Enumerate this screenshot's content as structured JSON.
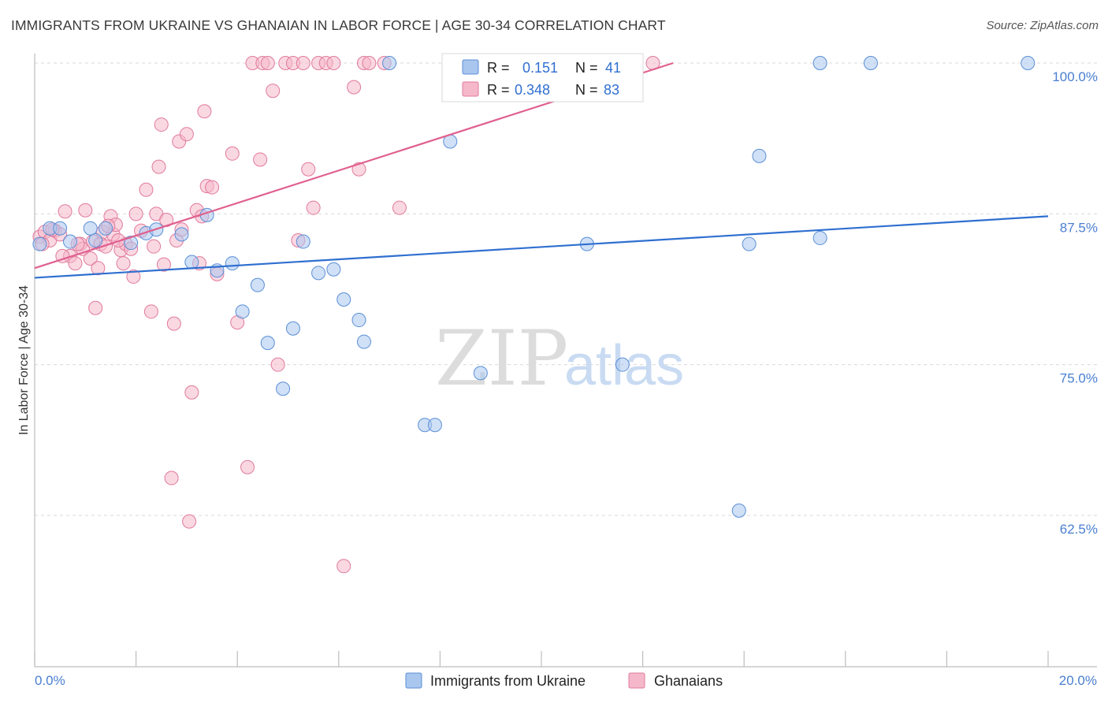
{
  "header": {
    "title": "IMMIGRANTS FROM UKRAINE VS GHANAIAN IN LABOR FORCE | AGE 30-34 CORRELATION CHART",
    "source": "Source: ZipAtlas.com"
  },
  "watermark": {
    "zip": "ZIP",
    "atlas": "atlas"
  },
  "legend": {
    "rows": [
      {
        "r_label": "R =",
        "r_value": "0.151",
        "n_label": "N =",
        "n_value": "41",
        "color": "#a9c6ef"
      },
      {
        "r_label": "R =",
        "r_value": "0.348",
        "n_label": "N =",
        "n_value": "83",
        "color": "#f5b8cb"
      }
    ]
  },
  "colors": {
    "ukraine_fill": "#a9c6ef",
    "ukraine_stroke": "#5b8fd6",
    "ukraine_line": "#2f6fd0",
    "ghana_fill": "#f5b8cb",
    "ghana_stroke": "#e07a9c",
    "ghana_line": "#e0608f",
    "axis_text": "#4a7fd1",
    "grid": "#d9d9d9"
  },
  "chart_data": {
    "type": "scatter",
    "title": "IMMIGRANTS FROM UKRAINE VS GHANAIAN IN LABOR FORCE | AGE 30-34 CORRELATION CHART",
    "xlabel": "",
    "ylabel": "In Labor Force | Age 30-34",
    "xlim": [
      0,
      20
    ],
    "ylim": [
      52.5,
      101.5
    ],
    "x_tick_labels": [
      "0.0%",
      "20.0%"
    ],
    "y_ticks": [
      100.0,
      87.5,
      75.0,
      62.5
    ],
    "y_tick_labels": [
      "100.0%",
      "87.5%",
      "75.0%",
      "62.5%"
    ],
    "grid": true,
    "legend_position": "top-center",
    "series": [
      {
        "name": "Immigrants from Ukraine",
        "points": [
          [
            0.1,
            85.0
          ],
          [
            0.3,
            86.3
          ],
          [
            0.5,
            86.3
          ],
          [
            0.7,
            85.2
          ],
          [
            1.1,
            86.3
          ],
          [
            1.2,
            85.3
          ],
          [
            1.4,
            86.3
          ],
          [
            1.9,
            85.1
          ],
          [
            2.2,
            85.9
          ],
          [
            2.4,
            86.2
          ],
          [
            2.9,
            85.8
          ],
          [
            3.1,
            83.5
          ],
          [
            3.4,
            87.4
          ],
          [
            3.6,
            82.8
          ],
          [
            3.9,
            83.4
          ],
          [
            4.1,
            79.4
          ],
          [
            4.4,
            81.6
          ],
          [
            4.6,
            76.8
          ],
          [
            4.9,
            73.0
          ],
          [
            5.1,
            78.0
          ],
          [
            5.3,
            85.2
          ],
          [
            5.6,
            82.6
          ],
          [
            5.9,
            82.9
          ],
          [
            6.1,
            80.4
          ],
          [
            6.4,
            78.7
          ],
          [
            6.5,
            76.9
          ],
          [
            7.0,
            100.0
          ],
          [
            7.7,
            70.0
          ],
          [
            7.9,
            70.0
          ],
          [
            8.2,
            93.5
          ],
          [
            8.8,
            74.3
          ],
          [
            9.3,
            100.0
          ],
          [
            10.9,
            85.0
          ],
          [
            11.6,
            75.0
          ],
          [
            13.9,
            62.9
          ],
          [
            14.1,
            85.0
          ],
          [
            14.3,
            92.3
          ],
          [
            15.5,
            100.0
          ],
          [
            15.5,
            85.5
          ],
          [
            16.5,
            100.0
          ],
          [
            19.6,
            100.0
          ]
        ],
        "trend": {
          "x": [
            0.0,
            20.0
          ],
          "y": [
            82.2,
            87.3
          ]
        }
      },
      {
        "name": "Ghanaians",
        "points": [
          [
            0.1,
            85.6
          ],
          [
            0.2,
            86.0
          ],
          [
            0.3,
            85.3
          ],
          [
            0.4,
            86.1
          ],
          [
            0.5,
            85.8
          ],
          [
            0.6,
            87.7
          ],
          [
            0.7,
            84.0
          ],
          [
            0.8,
            83.4
          ],
          [
            0.9,
            85.0
          ],
          [
            0.95,
            84.6
          ],
          [
            1.0,
            87.8
          ],
          [
            1.1,
            83.8
          ],
          [
            1.15,
            85.2
          ],
          [
            1.2,
            79.7
          ],
          [
            1.25,
            83.0
          ],
          [
            1.3,
            85.0
          ],
          [
            1.35,
            86.0
          ],
          [
            1.4,
            84.8
          ],
          [
            1.5,
            87.3
          ],
          [
            1.55,
            85.8
          ],
          [
            1.6,
            86.6
          ],
          [
            1.7,
            84.5
          ],
          [
            1.75,
            83.4
          ],
          [
            1.8,
            85.0
          ],
          [
            1.9,
            84.6
          ],
          [
            1.95,
            82.3
          ],
          [
            2.0,
            87.5
          ],
          [
            2.1,
            86.1
          ],
          [
            2.2,
            89.5
          ],
          [
            2.3,
            79.4
          ],
          [
            2.35,
            84.8
          ],
          [
            2.4,
            87.5
          ],
          [
            2.45,
            91.4
          ],
          [
            2.5,
            94.9
          ],
          [
            2.55,
            83.3
          ],
          [
            2.6,
            87.0
          ],
          [
            2.7,
            65.6
          ],
          [
            2.75,
            78.4
          ],
          [
            2.8,
            85.3
          ],
          [
            2.85,
            93.5
          ],
          [
            2.9,
            86.2
          ],
          [
            3.0,
            94.1
          ],
          [
            3.05,
            62.0
          ],
          [
            3.1,
            72.7
          ],
          [
            3.2,
            87.8
          ],
          [
            3.25,
            83.4
          ],
          [
            3.3,
            87.3
          ],
          [
            3.35,
            96.0
          ],
          [
            3.4,
            89.8
          ],
          [
            3.5,
            89.7
          ],
          [
            3.6,
            82.5
          ],
          [
            3.9,
            92.5
          ],
          [
            4.0,
            78.5
          ],
          [
            4.2,
            66.5
          ],
          [
            4.3,
            100.0
          ],
          [
            4.45,
            92.0
          ],
          [
            4.5,
            100.0
          ],
          [
            4.6,
            100.0
          ],
          [
            4.7,
            97.7
          ],
          [
            4.8,
            75.0
          ],
          [
            4.95,
            100.0
          ],
          [
            5.1,
            100.0
          ],
          [
            5.2,
            85.3
          ],
          [
            5.3,
            100.0
          ],
          [
            5.4,
            91.2
          ],
          [
            5.5,
            88.0
          ],
          [
            5.6,
            100.0
          ],
          [
            5.75,
            100.0
          ],
          [
            5.9,
            100.0
          ],
          [
            6.1,
            58.3
          ],
          [
            6.3,
            98.0
          ],
          [
            6.4,
            91.2
          ],
          [
            6.5,
            100.0
          ],
          [
            6.6,
            100.0
          ],
          [
            6.9,
            100.0
          ],
          [
            7.2,
            88.0
          ],
          [
            12.2,
            100.0
          ],
          [
            0.15,
            85.0
          ],
          [
            0.35,
            86.2
          ],
          [
            0.55,
            84.0
          ],
          [
            0.85,
            85.0
          ],
          [
            1.45,
            86.5
          ],
          [
            1.65,
            85.3
          ]
        ],
        "trend": {
          "x": [
            0.0,
            12.6
          ],
          "y": [
            83.0,
            100.0
          ]
        }
      }
    ]
  },
  "bottom_legend": {
    "items": [
      {
        "label": "Immigrants from Ukraine",
        "color": "#a9c6ef"
      },
      {
        "label": "Ghanaians",
        "color": "#f5b8cb"
      }
    ]
  }
}
